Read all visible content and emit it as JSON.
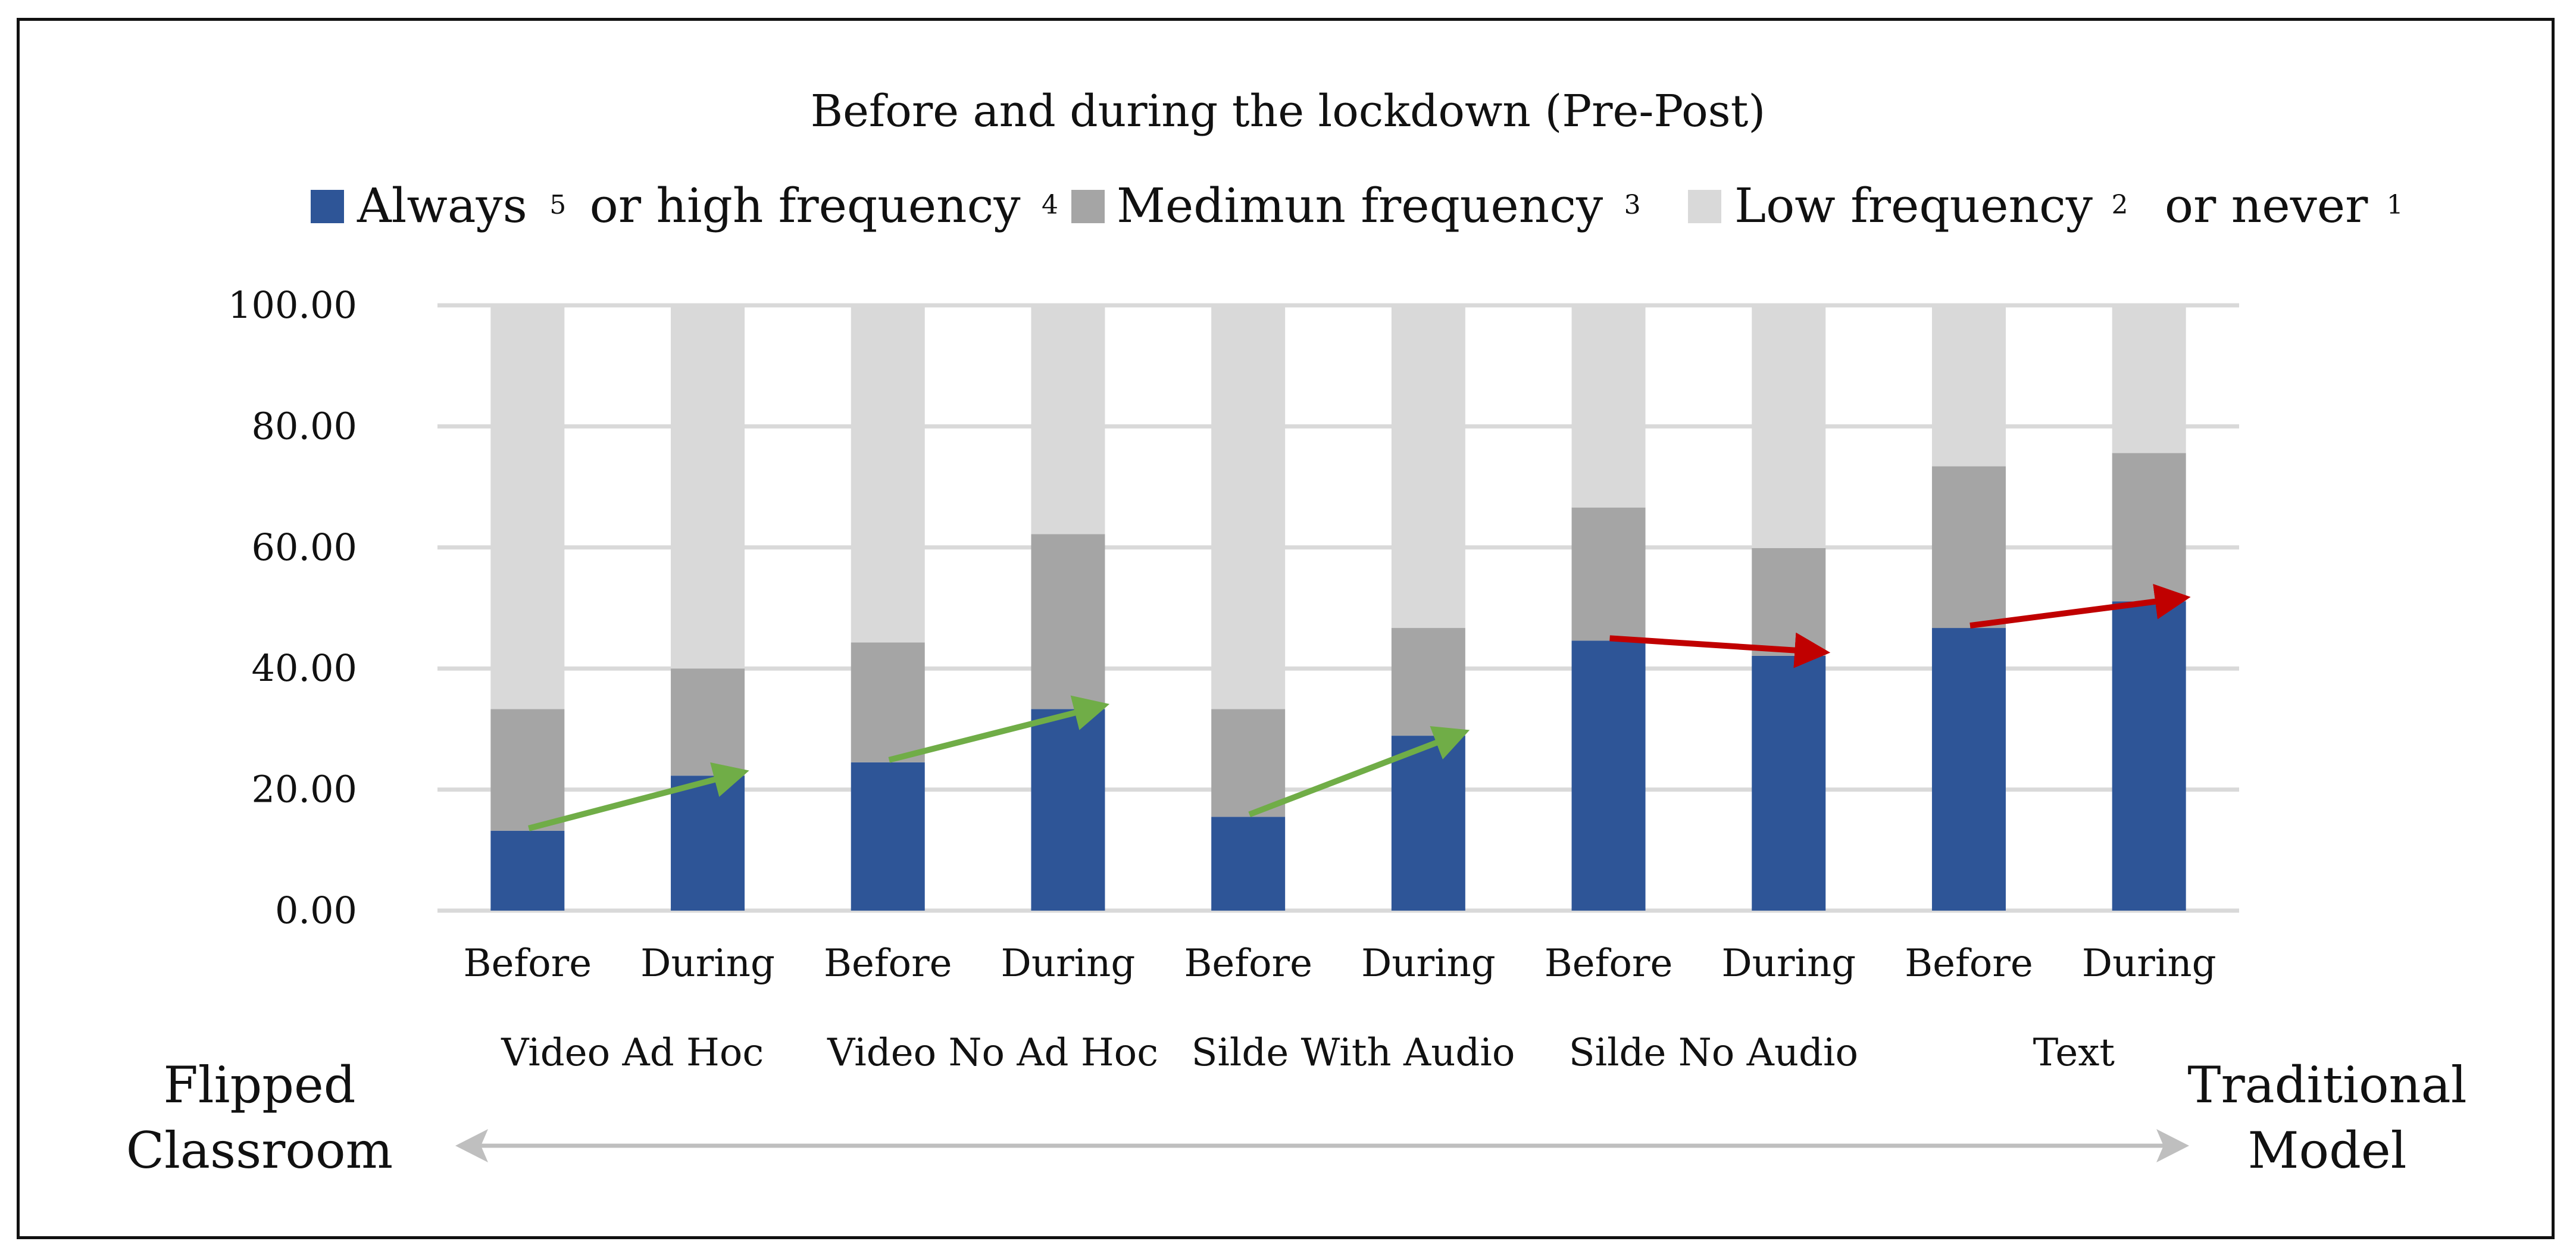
{
  "chart_data": {
    "type": "bar",
    "stacked": true,
    "title": "Before and during the lockdown (Pre-Post)",
    "categories": [
      "Before",
      "During",
      "Before",
      "During",
      "Before",
      "During",
      "Before",
      "During",
      "Before",
      "During"
    ],
    "groups": [
      "Video Ad Hoc",
      "Video No Ad Hoc",
      "Silde With Audio",
      "Silde No Audio",
      "Text"
    ],
    "series": [
      {
        "name": "Always 5 or high frequency 4",
        "color": "#2e5597",
        "values": [
          13.2,
          22.3,
          24.5,
          33.3,
          15.5,
          28.9,
          44.6,
          42.1,
          46.7,
          51.1
        ]
      },
      {
        "name": "Medimun frequency 3",
        "color": "#a5a5a5",
        "values": [
          20.1,
          17.7,
          19.8,
          28.9,
          17.8,
          17.8,
          22.0,
          17.8,
          26.7,
          24.5
        ]
      },
      {
        "name": "Low frequency2 or never1",
        "color": "#d9d9d9",
        "values": [
          66.7,
          60.0,
          55.7,
          37.8,
          66.7,
          53.3,
          33.4,
          40.1,
          26.6,
          24.4
        ]
      }
    ],
    "legend": {
      "position": "top",
      "items": [
        {
          "label": "Always",
          "sup1": "5",
          "mid": "or high frequency",
          "sup2": "4",
          "color": "#2e5597"
        },
        {
          "label": "Medimun frequency",
          "sup1": "3",
          "mid": "",
          "sup2": "",
          "color": "#a5a5a5"
        },
        {
          "label": "Low frequency",
          "sup1": "2",
          "mid": "or never",
          "sup2": "1",
          "color": "#d9d9d9"
        }
      ]
    },
    "ylim": [
      0,
      100
    ],
    "yticks": [
      0,
      20,
      40,
      60,
      80,
      100
    ],
    "ytick_labels": [
      "0.00",
      "20.00",
      "40.00",
      "60.00",
      "80.00",
      "100.00"
    ],
    "grid": true,
    "trend_arrows": [
      {
        "from": 0,
        "to": 1,
        "direction": "up",
        "color": "#70ad47"
      },
      {
        "from": 2,
        "to": 3,
        "direction": "up",
        "color": "#70ad47"
      },
      {
        "from": 4,
        "to": 5,
        "direction": "up",
        "color": "#70ad47"
      },
      {
        "from": 6,
        "to": 7,
        "direction": "down",
        "color": "#c00000"
      },
      {
        "from": 8,
        "to": 9,
        "direction": "up",
        "color": "#c00000"
      }
    ],
    "axis_ends": {
      "left_line1": "Flipped",
      "left_line2": "Classroom",
      "right_line1": "Traditional",
      "right_line2": "Model",
      "arrow_color": "#bfbfbf"
    }
  }
}
